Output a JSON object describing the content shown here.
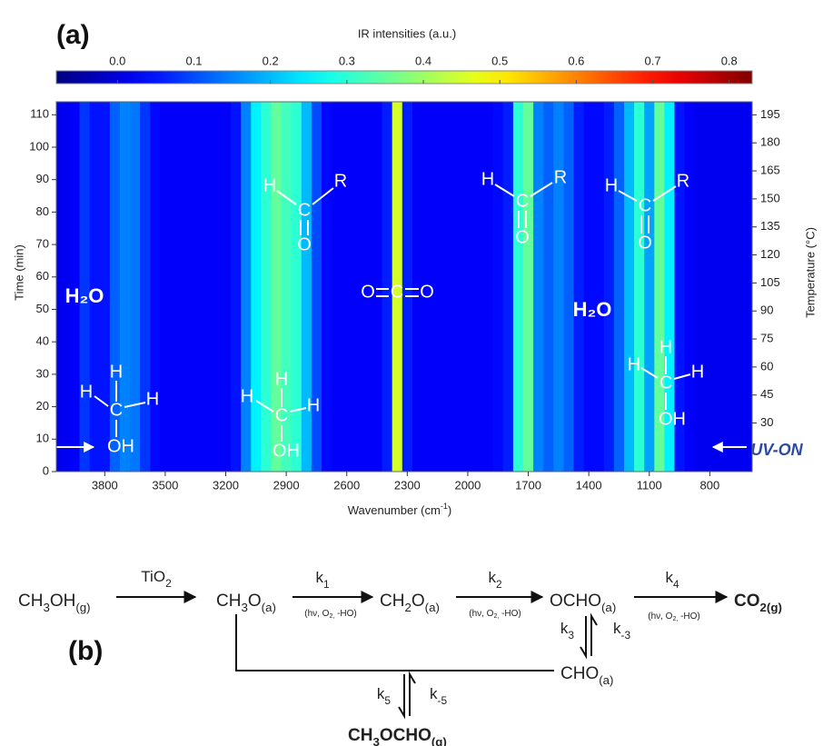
{
  "chart_data": {
    "type": "heatmap",
    "panel_label": "(a)",
    "colorbar_label": "IR intensities (a.u.)",
    "clim": [
      -0.08,
      0.83
    ],
    "cticks": [
      {
        "value": 0,
        "label": "0.0"
      },
      0.1,
      0.2,
      0.3,
      0.4,
      0.5,
      0.6,
      0.7,
      0.8
    ],
    "x_label": [
      "Wavenumber (cm",
      "-1",
      ")"
    ],
    "y_label": "Time (min)",
    "y2_label": "Temperature (°C)",
    "xlim": [
      4040,
      590
    ],
    "xticks": [
      3800,
      3500,
      3200,
      2900,
      2600,
      2300,
      2000,
      1700,
      1400,
      1100,
      800
    ],
    "ylim": [
      0,
      114
    ],
    "yticks": [
      0,
      10,
      20,
      30,
      40,
      50,
      60,
      70,
      80,
      90,
      100,
      110
    ],
    "y2lim": [
      4,
      202
    ],
    "y2ticks": [
      30,
      45,
      60,
      75,
      90,
      105,
      120,
      135,
      150,
      165,
      180,
      195
    ],
    "x": [
      4050,
      4000,
      3950,
      3900,
      3850,
      3800,
      3750,
      3700,
      3650,
      3600,
      3550,
      3500,
      3450,
      3400,
      3350,
      3300,
      3250,
      3200,
      3150,
      3100,
      3050,
      3000,
      2950,
      2900,
      2850,
      2800,
      2750,
      2700,
      2650,
      2600,
      2550,
      2500,
      2450,
      2400,
      2350,
      2300,
      2250,
      2200,
      2150,
      2100,
      2050,
      2000,
      1950,
      1900,
      1850,
      1800,
      1750,
      1700,
      1650,
      1600,
      1550,
      1500,
      1450,
      1400,
      1350,
      1300,
      1250,
      1200,
      1150,
      1100,
      1050,
      1000,
      950,
      900,
      850,
      800,
      750,
      700,
      650,
      600
    ],
    "values": [
      0.02,
      0.02,
      0.03,
      0.08,
      0.05,
      0.05,
      0.12,
      0.15,
      0.14,
      0.08,
      0.04,
      0.03,
      0.03,
      0.03,
      0.03,
      0.03,
      0.03,
      0.03,
      0.05,
      0.15,
      0.25,
      0.3,
      0.35,
      0.32,
      0.3,
      0.2,
      0.1,
      0.04,
      0.03,
      0.03,
      0.03,
      0.03,
      0.03,
      0.06,
      0.45,
      0.06,
      0.03,
      0.03,
      0.03,
      0.03,
      0.03,
      0.03,
      0.03,
      0.03,
      0.04,
      0.06,
      0.3,
      0.35,
      0.15,
      0.12,
      0.15,
      0.12,
      0.06,
      0.04,
      0.04,
      0.06,
      0.12,
      0.2,
      0.3,
      0.18,
      0.35,
      0.25,
      0.05,
      0.03,
      0.02,
      0.02,
      0.02,
      0.02,
      0.02,
      0.02
    ],
    "annotations": [
      "H₂O",
      "H",
      "H",
      "C",
      "H",
      "OH",
      "H",
      "C",
      "R",
      "O",
      "H",
      "H",
      "C",
      "H",
      "OH",
      "O",
      "C",
      "O",
      "H",
      "C",
      "R",
      "O",
      "H",
      "C",
      "R",
      "O",
      "H₂O",
      "H",
      "H",
      "C",
      "H",
      "OH",
      "UV-ON"
    ]
  },
  "scheme": {
    "label": "(b)",
    "species": [
      [
        "CH",
        "3",
        "OH",
        "(g)"
      ],
      [
        "CH",
        "3",
        "O",
        "(a)"
      ],
      [
        "CH",
        "2",
        "O",
        "(a)"
      ],
      [
        "OCHO",
        "(a)"
      ],
      [
        "CO",
        "2(g)"
      ],
      [
        "CHO",
        "(a)"
      ],
      [
        "CH",
        "3",
        "OCHO",
        "(g)"
      ]
    ],
    "catalyst": [
      "TiO",
      "2"
    ],
    "rates": [
      [
        "k",
        "1"
      ],
      [
        "k",
        "2"
      ],
      [
        "k",
        "4"
      ],
      [
        "k",
        "3"
      ],
      [
        "k",
        "-3"
      ],
      [
        "k",
        "5"
      ],
      [
        "k",
        "-5"
      ]
    ],
    "conditions": [
      [
        "(hν, O",
        "2,",
        " -HO)"
      ],
      [
        "(hν, O",
        "2,",
        " -HO)"
      ],
      [
        "(hν, O",
        "2,",
        " -HO)"
      ]
    ]
  }
}
